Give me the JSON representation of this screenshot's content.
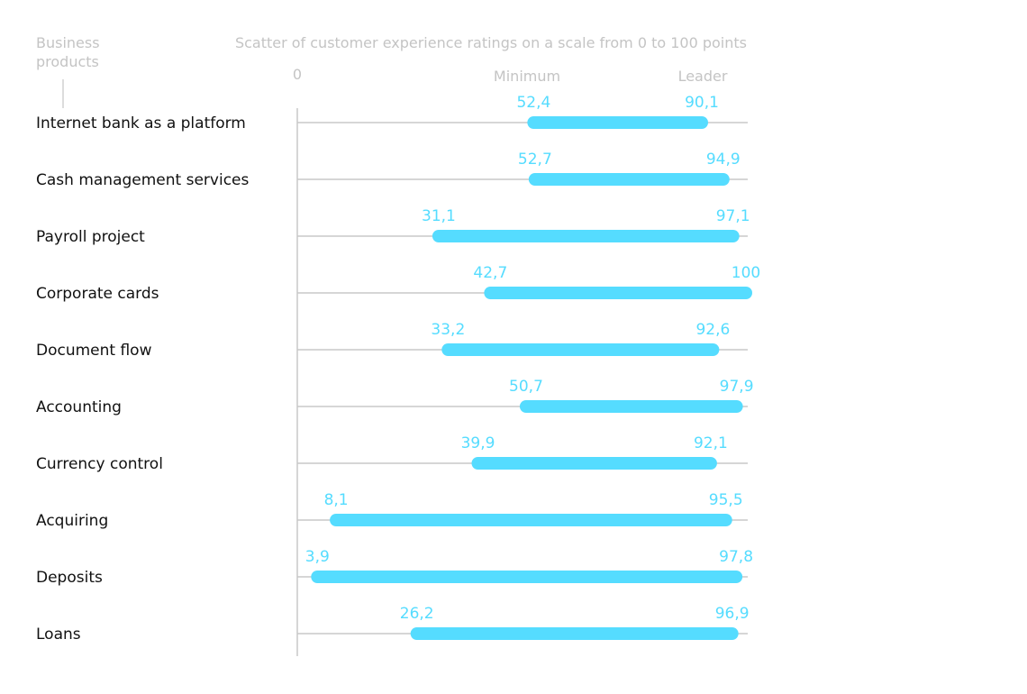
{
  "chart_data": {
    "type": "range-bar",
    "title": "Scatter of customer experience ratings on a scale from 0 to 100 points",
    "category_header": "Business products",
    "axis_zero_label": "0",
    "min_label": "Minimum",
    "max_label": "Leader",
    "xlim": [
      0,
      100
    ],
    "bar_color": "#55dcff",
    "categories": [
      "Internet bank as a platform",
      "Cash management services",
      "Payroll project",
      "Corporate cards",
      "Document flow",
      "Accounting",
      "Currency control",
      "Acquiring",
      "Deposits",
      "Loans"
    ],
    "min_values": [
      52.4,
      52.7,
      31.1,
      42.7,
      33.2,
      50.7,
      39.9,
      8.1,
      3.9,
      26.2
    ],
    "max_values": [
      90.1,
      94.9,
      97.1,
      100,
      92.6,
      97.9,
      92.1,
      95.5,
      97.8,
      96.9
    ],
    "min_labels": [
      "52,4",
      "52,7",
      "31,1",
      "42,7",
      "33,2",
      "50,7",
      "39,9",
      "8,1",
      "3,9",
      "26,2"
    ],
    "max_labels": [
      "90,1",
      "94,9",
      "97,1",
      "100",
      "92,6",
      "97,9",
      "92,1",
      "95,5",
      "97,8",
      "96,9"
    ]
  }
}
